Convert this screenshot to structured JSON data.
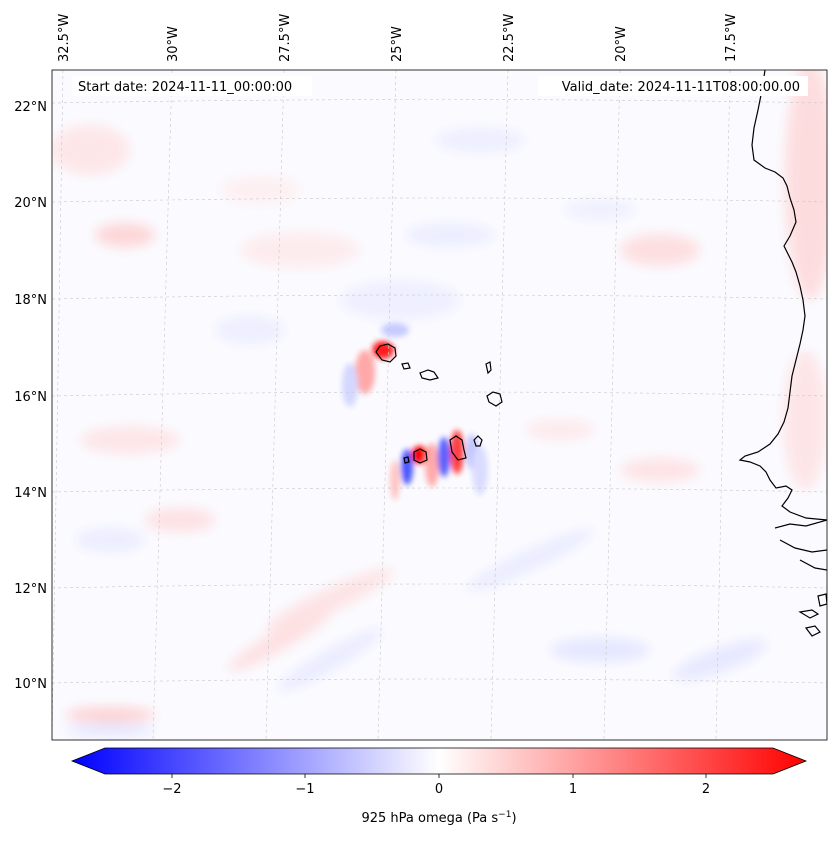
{
  "map": {
    "start_date": "Start date: 2024-11-11_00:00:00",
    "valid_date": "Valid_date: 2024-11-11T08:00:00.00",
    "lon_labels": [
      "32.5°W",
      "30°W",
      "27.5°W",
      "25°W",
      "22.5°W",
      "20°W",
      "17.5°W"
    ],
    "lat_labels": [
      "22°N",
      "20°N",
      "18°N",
      "16°N",
      "14°N",
      "12°N",
      "10°N"
    ],
    "colors": {
      "negative": "#0000ff",
      "neutral": "#ffffff",
      "positive": "#ff0000",
      "coastline": "#000000",
      "gridline": "#c8c8c8"
    }
  },
  "colorbar": {
    "ticks": [
      "−2",
      "−1",
      "0",
      "1",
      "2"
    ],
    "label": "925 hPa omega (Pa s",
    "label_sup": "−1",
    "label_end": ")",
    "range": [
      -2.5,
      2.5
    ]
  }
}
